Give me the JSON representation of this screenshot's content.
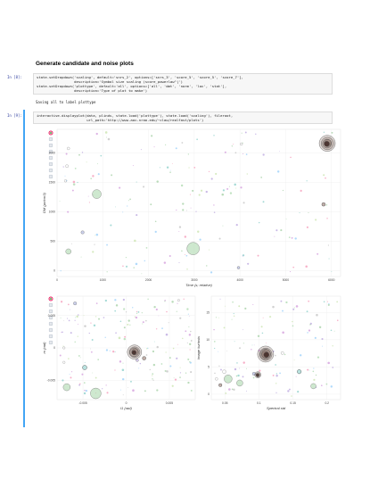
{
  "heading": "Generate candidate and noise plots",
  "cell1": {
    "prompt": "In [8]:",
    "lines": [
      "state.setDropdown('scaling', default='snrs_2', options=['snrs_3', 'score_5', 'score_5', 'score_7'],",
      "                  description='Symbol size scaling (score_powerlaw^|')",
      "state.setDropdown('plottype', default='all', options=['all', 'dmt', 'norm', 'loc', 'stat'],",
      "                  description='Type of plot to make')"
    ],
    "output": "Saving all to label plottype"
  },
  "cell2": {
    "prompt": "In [9]:",
    "lines": [
      "interactive.displayplot(data, plinds, state.load('plottype'), state.load('scaling'), fileroot,",
      "                        url_path='http://www.aoc.nrao.edu/~claw/realfast/plots')"
    ]
  },
  "colors": {
    "cellbar": "#42a5f5",
    "prompt": "#303f9f"
  },
  "plots": {
    "dmt": {
      "xlabel": "Time (s; relative)",
      "ylabel": "DM (pc/cm3)",
      "xticks": [
        "0",
        "1000",
        "2000",
        "3000",
        "4000",
        "5000",
        "6000"
      ],
      "yticks": [
        "0",
        "500",
        "1000",
        "1500",
        "2000"
      ],
      "xlim": [
        0,
        6200
      ],
      "ylim": [
        -100,
        2400
      ]
    },
    "loc": {
      "xlabel": "l1 (rad)",
      "ylabel": "m (rad)",
      "xticks": [
        "-0.005",
        "0",
        "0.005"
      ],
      "yticks": [
        "-0.005",
        "0",
        "0.005"
      ],
      "xlim": [
        -0.008,
        0.008
      ],
      "ylim": [
        -0.008,
        0.008
      ]
    },
    "stat": {
      "xlabel": "Spectral std",
      "ylabel": "Image kurtosis",
      "xticks": [
        "0.05",
        "0.1",
        "0.15",
        "0.2"
      ],
      "yticks": [
        "0",
        "5",
        "10",
        "15"
      ],
      "xlim": [
        0.03,
        0.22
      ],
      "ylim": [
        -1,
        18
      ]
    }
  },
  "toolbar_icons": [
    "bokeh-logo-icon",
    "pan-icon",
    "wheel-zoom-icon",
    "box-zoom-icon",
    "tap-icon",
    "hover-icon",
    "reset-icon",
    "save-icon"
  ]
}
